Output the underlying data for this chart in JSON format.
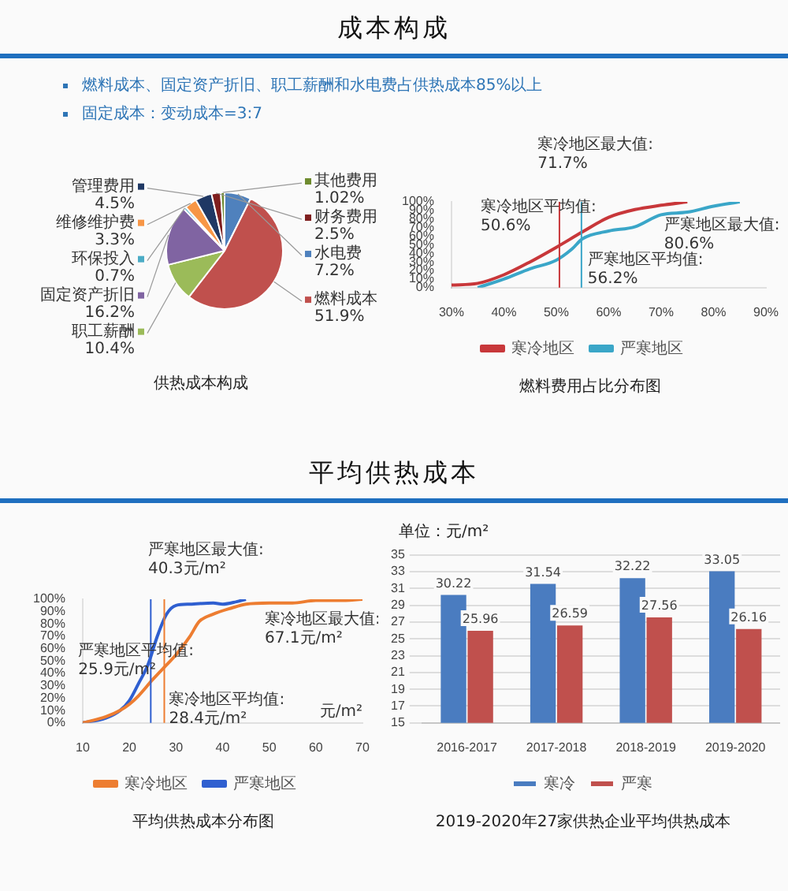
{
  "chart_data": [
    {
      "type": "other",
      "title": "成本构成",
      "annotations": [
        "燃料成本、固定资产折旧、职工薪酬和水电费占供热成本85%以上",
        "固定成本：变动成本=3:7"
      ]
    },
    {
      "type": "pie",
      "title": "供热成本构成",
      "legend": "left",
      "categories": [
        "水电费",
        "燃料成本",
        "职工薪酬",
        "固定资产折旧",
        "环保投入",
        "维修维护费",
        "管理费用",
        "财务费用",
        "其他费用"
      ],
      "values": [
        7.2,
        51.9,
        10.4,
        16.2,
        0.7,
        3.3,
        4.5,
        2.5,
        1.02
      ],
      "value_labels": [
        "7.2%",
        "51.9%",
        "10.4%",
        "16.2%",
        "0.7%",
        "3.3%",
        "4.5%",
        "2.5%",
        "1.02%"
      ],
      "colors": [
        "#4f81bd",
        "#c0504d",
        "#9bbb59",
        "#8064a2",
        "#4bacc6",
        "#f79646",
        "#1f3864",
        "#7f1f1f",
        "#6e8b2e"
      ]
    },
    {
      "type": "line",
      "title": "燃料费用占比分布图",
      "legend": "bottom",
      "xlim": [
        30,
        90
      ],
      "ylim": [
        0,
        100
      ],
      "xticks": [
        {
          "value": 30,
          "label": "30%"
        },
        {
          "value": 40,
          "label": "40%"
        },
        {
          "value": 50,
          "label": "50%"
        },
        {
          "value": 60,
          "label": "60%"
        },
        {
          "value": 70,
          "label": "70%"
        },
        {
          "value": 80,
          "label": "80%"
        },
        {
          "value": 90,
          "label": "90%"
        }
      ],
      "yticks": [
        {
          "value": 0,
          "label": "0%"
        },
        {
          "value": 10,
          "label": "10%"
        },
        {
          "value": 20,
          "label": "20%"
        },
        {
          "value": 30,
          "label": "30%"
        },
        {
          "value": 40,
          "label": "40%"
        },
        {
          "value": 50,
          "label": "50%"
        },
        {
          "value": 60,
          "label": "60%"
        },
        {
          "value": 70,
          "label": "70%"
        },
        {
          "value": 80,
          "label": "80%"
        },
        {
          "value": 90,
          "label": "90%"
        },
        {
          "value": 100,
          "label": "100%"
        }
      ],
      "series": [
        {
          "name": "寒冷地区",
          "color": "#c8373a",
          "x": [
            30,
            35,
            40,
            45,
            50,
            55,
            60,
            65,
            70,
            75
          ],
          "values": [
            3,
            5,
            15,
            30,
            47,
            65,
            82,
            91,
            96,
            100
          ]
        },
        {
          "name": "严寒地区",
          "color": "#3aa6c8",
          "x": [
            35,
            40,
            45,
            50,
            53,
            55,
            60,
            65,
            70,
            75,
            80,
            85
          ],
          "values": [
            0,
            10,
            22,
            32,
            45,
            57,
            66,
            71,
            85,
            88,
            95,
            100
          ]
        }
      ],
      "ref_lines": [
        {
          "axis": "x",
          "value": 50.6,
          "color": "#c8373a"
        },
        {
          "axis": "x",
          "value": 54.8,
          "color": "#3aa6c8"
        }
      ],
      "annotations": [
        {
          "text": "寒冷地区最大值:\n71.7%",
          "x": 75,
          "y": 100
        },
        {
          "text": "严寒地区最大值:\n80.6%",
          "x": 85,
          "y": 100
        },
        {
          "text": "寒冷地区平均值:\n50.6%",
          "x": 50.6,
          "y": 48
        },
        {
          "text": "严寒地区平均值:\n56.2%",
          "x": 54.8,
          "y": 56
        }
      ]
    },
    {
      "type": "other",
      "title": "平均供热成本"
    },
    {
      "type": "line",
      "title": "平均供热成本分布图",
      "xlabel": "元/m²",
      "legend": "bottom",
      "xlim": [
        10,
        70
      ],
      "ylim": [
        0,
        100
      ],
      "xticks": [
        10,
        20,
        30,
        40,
        50,
        60,
        70
      ],
      "yticks": [
        {
          "value": 0,
          "label": "0%"
        },
        {
          "value": 10,
          "label": "10%"
        },
        {
          "value": 20,
          "label": "20%"
        },
        {
          "value": 30,
          "label": "30%"
        },
        {
          "value": 40,
          "label": "40%"
        },
        {
          "value": 50,
          "label": "50%"
        },
        {
          "value": 60,
          "label": "60%"
        },
        {
          "value": 70,
          "label": "70%"
        },
        {
          "value": 80,
          "label": "80%"
        },
        {
          "value": 90,
          "label": "90%"
        },
        {
          "value": 100,
          "label": "100%"
        }
      ],
      "series": [
        {
          "name": "寒冷地区",
          "color": "#ed7d31",
          "x": [
            10,
            15,
            18,
            20,
            22,
            25,
            28,
            30,
            33,
            35,
            38,
            42,
            45,
            50,
            55,
            60,
            65,
            70
          ],
          "values": [
            0,
            5,
            10,
            15,
            22,
            35,
            47,
            55,
            70,
            82,
            88,
            93,
            96,
            97,
            97,
            99,
            99,
            100
          ]
        },
        {
          "name": "严寒地区",
          "color": "#2f5fd0",
          "x": [
            10,
            15,
            18,
            20,
            22,
            24,
            26,
            28,
            30,
            33,
            38,
            40,
            43,
            45
          ],
          "values": [
            0,
            4,
            10,
            18,
            32,
            47,
            70,
            88,
            95,
            96,
            97,
            96,
            98,
            100
          ]
        }
      ],
      "ref_lines": [
        {
          "axis": "x",
          "value": 24.6,
          "color": "#2f5fd0"
        },
        {
          "axis": "x",
          "value": 27.5,
          "color": "#ed7d31"
        }
      ],
      "annotations": [
        {
          "text": "严寒地区最大值:\n40.3元/m²",
          "x": 45,
          "y": 100
        },
        {
          "text": "寒冷地区最大值:\n67.1元/m²",
          "x": 70,
          "y": 100
        },
        {
          "text": "严寒地区平均值:\n25.9元/m²",
          "x": 24.6,
          "y": 54
        },
        {
          "text": "寒冷地区平均值:\n28.4元/m²",
          "x": 27.5,
          "y": 45
        }
      ]
    },
    {
      "type": "bar",
      "title": "2019-2020年27家供热企业平均供热成本",
      "ylabel": "单位：元/m²",
      "legend": "bottom",
      "grid": "y",
      "data_labels": true,
      "categories": [
        "2016-2017",
        "2017-2018",
        "2018-2019",
        "2019-2020"
      ],
      "ylim": [
        15,
        35
      ],
      "yticks": [
        15,
        17,
        19,
        21,
        23,
        25,
        27,
        29,
        31,
        33,
        35
      ],
      "series": [
        {
          "name": "寒冷",
          "color": "#4a7cc0",
          "values": [
            30.22,
            31.54,
            32.22,
            33.05
          ]
        },
        {
          "name": "严寒",
          "color": "#c0504d",
          "values": [
            25.96,
            26.59,
            27.56,
            26.16
          ]
        }
      ]
    }
  ]
}
